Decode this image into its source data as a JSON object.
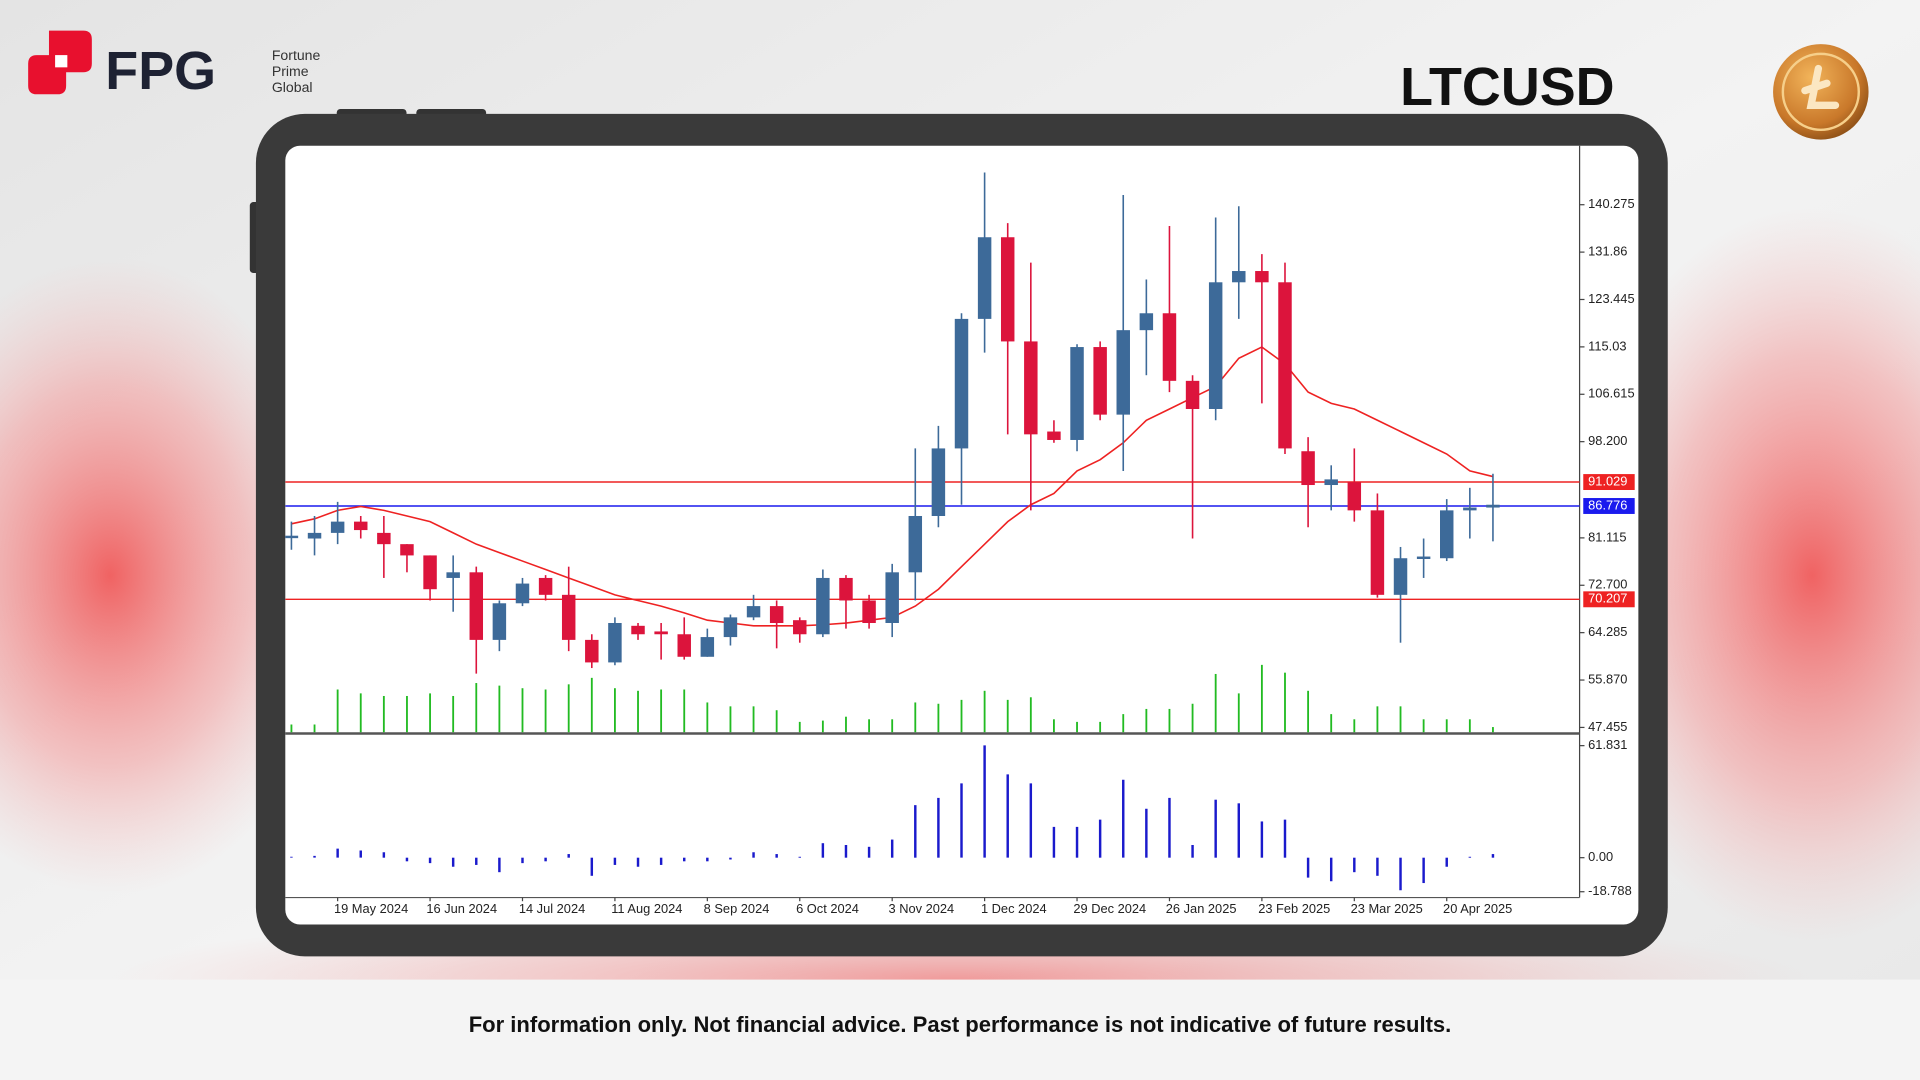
{
  "header": {
    "brand": "FPG",
    "brand_lines": [
      "Fortune",
      "Prime",
      "Global"
    ],
    "symbol": "LTCUSD"
  },
  "chart_data": {
    "type": "candlestick",
    "categories": [
      null,
      null,
      "19 May 2024",
      null,
      null,
      null,
      "16 Jun 2024",
      null,
      null,
      null,
      "14 Jul 2024",
      null,
      null,
      null,
      "11 Aug 2024",
      null,
      null,
      null,
      "8 Sep 2024",
      null,
      null,
      null,
      "6 Oct 2024",
      null,
      null,
      null,
      "3 Nov 2024",
      null,
      null,
      null,
      "1 Dec 2024",
      null,
      null,
      null,
      "29 Dec 2024",
      null,
      null,
      null,
      "26 Jan 2025",
      null,
      null,
      null,
      "23 Feb 2025",
      null,
      null,
      null,
      "23 Mar 2025",
      null,
      null,
      null,
      "20 Apr 2025",
      null,
      null
    ],
    "up_color": "#3d6a99",
    "down_color": "#dc143c",
    "open": [
      81.5,
      81,
      82,
      84,
      82,
      80,
      78,
      74,
      75,
      63,
      69.5,
      74,
      71,
      63,
      59,
      65.5,
      64.5,
      64,
      60,
      63.5,
      67,
      69,
      66.5,
      64,
      74,
      70,
      66,
      75,
      85,
      97,
      120,
      134.5,
      116,
      100,
      98.5,
      115,
      103,
      118,
      121,
      109,
      104,
      126.5,
      128.5,
      126.5,
      96.5,
      90.5,
      91,
      86,
      71,
      77.5,
      77.5,
      86,
      86.5
    ],
    "high": [
      84,
      85,
      87.5,
      85,
      85,
      80,
      78,
      78,
      76,
      70,
      74,
      74.5,
      76,
      64,
      67,
      66,
      66,
      67,
      65,
      67.5,
      71,
      70,
      67,
      75.5,
      74.5,
      71,
      76.5,
      97,
      101,
      121,
      146,
      137,
      130,
      102,
      115.5,
      116,
      142,
      127,
      136.5,
      110,
      138,
      140,
      131.5,
      130,
      99,
      94,
      97,
      89,
      79.5,
      81,
      88,
      90,
      92.5
    ],
    "low": [
      79,
      78,
      80,
      81,
      74,
      75,
      70,
      68,
      57,
      61,
      69,
      70,
      61,
      58,
      58.5,
      63,
      59.5,
      59.5,
      60,
      62,
      66.5,
      61.5,
      62.5,
      63.5,
      65,
      65,
      63.5,
      70,
      83,
      87,
      114,
      99.5,
      86,
      98,
      96.5,
      102,
      93,
      110,
      107,
      81,
      102,
      120,
      105,
      96,
      83,
      86,
      84,
      70.5,
      62.5,
      74,
      77,
      81,
      80.5
    ],
    "close": [
      81.5,
      82,
      84,
      82.5,
      80,
      78,
      72,
      75,
      63,
      69.5,
      73,
      71,
      63,
      59,
      66,
      64,
      64,
      60,
      63.5,
      67,
      69,
      66,
      64,
      74,
      70,
      66,
      75,
      85,
      97,
      120,
      134.5,
      116,
      99.5,
      98.5,
      115,
      103,
      118,
      121,
      109,
      104,
      126.5,
      128.5,
      126.5,
      97,
      90.5,
      91.5,
      86,
      71,
      77.5,
      77.8,
      86,
      86.5,
      87
    ],
    "ma": {
      "color": "#ee2222",
      "values": [
        83.6,
        84.5,
        86,
        86.7,
        86,
        85,
        84,
        82,
        80,
        78.5,
        77,
        75.5,
        74,
        72.5,
        71,
        70,
        69,
        67.8,
        66.5,
        66,
        65.5,
        65.5,
        65.5,
        65.7,
        66,
        66.5,
        67,
        69,
        72,
        76,
        80,
        84,
        87,
        89,
        93,
        95,
        98,
        102,
        104,
        106,
        108,
        113,
        115,
        112,
        107,
        105,
        104,
        102,
        100,
        98,
        96,
        93,
        92
      ]
    },
    "volume": {
      "color": "#22bb22",
      "values": [
        6,
        6,
        33,
        30,
        28,
        28,
        30,
        28,
        38,
        36,
        34,
        33,
        37,
        42,
        34,
        32,
        33,
        33,
        23,
        20,
        20,
        17,
        8,
        9,
        12,
        10,
        10,
        23,
        22,
        25,
        32,
        25,
        27,
        10,
        8,
        8,
        14,
        18,
        18,
        22,
        45,
        30,
        52,
        46,
        32,
        14,
        10,
        20,
        20,
        10,
        10,
        10,
        4
      ]
    },
    "ylim": [
      46.6,
      150.1
    ],
    "yticks": [
      140.275,
      131.86,
      {
        "value": 123.445,
        "label": "123.445"
      },
      115.03,
      106.615,
      {
        "value": 98.2,
        "label": "98.200"
      },
      81.115,
      {
        "value": 72.7,
        "label": "72.700"
      },
      64.285,
      {
        "value": 55.87,
        "label": "55.870"
      },
      47.455
    ],
    "levels": [
      {
        "value": 91.029,
        "color": "#ee2222"
      },
      {
        "value": 86.776,
        "color": "#1a1aee"
      },
      {
        "value": 70.207,
        "color": "#ee2222"
      }
    ],
    "indicator": {
      "color": "#1a1acc",
      "values": [
        0.5,
        1,
        5,
        4,
        3,
        -2,
        -3,
        -5,
        -4,
        -8,
        -3,
        -2,
        2,
        -10,
        -4,
        -5,
        -4,
        -2,
        -2,
        -1,
        3,
        2,
        0.5,
        8,
        7,
        6,
        10,
        29,
        33,
        41,
        62,
        46,
        41,
        17,
        17,
        21,
        43,
        27,
        33,
        7,
        32,
        30,
        20,
        21,
        -11,
        -13,
        -8,
        -10,
        -18,
        -14,
        -5,
        0.5,
        2
      ],
      "ylim": [
        -22,
        67.2
      ],
      "yticks": [
        61.831,
        {
          "value": 0,
          "label": "0.00"
        },
        -18.788
      ]
    }
  },
  "footer": "For information only. Not financial advice. Past performance is not indicative of future results."
}
